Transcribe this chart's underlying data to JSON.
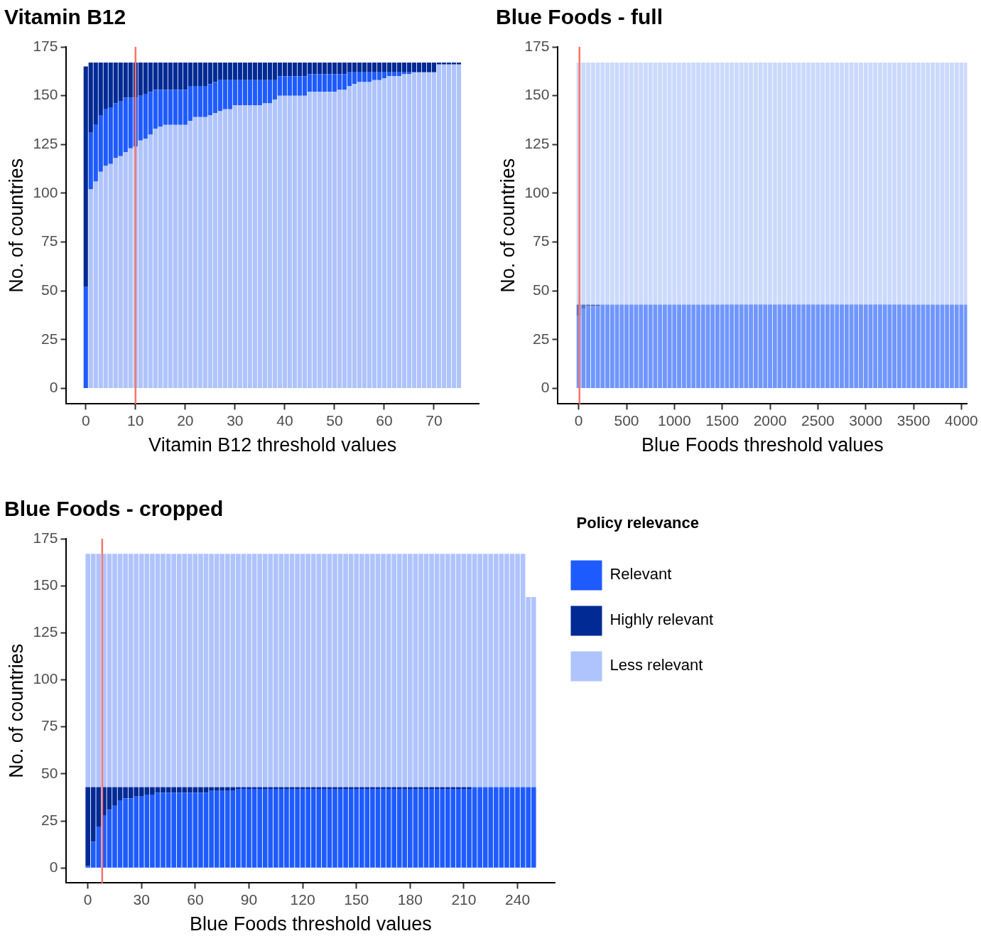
{
  "chart_data": [
    {
      "type": "bar",
      "title": "Vitamin B12",
      "xlabel": "Vitamin B12 threshold values",
      "ylabel": "No. of countries",
      "stacked": true,
      "grid": false,
      "legend": false,
      "x": [
        0,
        1,
        2,
        3,
        4,
        5,
        6,
        7,
        8,
        9,
        10,
        11,
        12,
        13,
        14,
        15,
        16,
        17,
        18,
        19,
        20,
        21,
        22,
        23,
        24,
        25,
        26,
        27,
        28,
        29,
        30,
        31,
        32,
        33,
        34,
        35,
        36,
        37,
        38,
        39,
        40,
        41,
        42,
        43,
        44,
        45,
        46,
        47,
        48,
        49,
        50,
        51,
        52,
        53,
        54,
        55,
        56,
        57,
        58,
        59,
        60,
        61,
        62,
        63,
        64,
        65,
        66,
        67,
        68,
        69,
        70,
        71,
        72,
        73,
        74,
        75
      ],
      "xlim": [
        -3.9,
        79
      ],
      "xticks": [
        0,
        10,
        20,
        30,
        40,
        50,
        60,
        70
      ],
      "ylim": [
        -8,
        175
      ],
      "yticks": [
        0,
        25,
        50,
        75,
        100,
        125,
        150,
        175
      ],
      "ref_lines": [
        {
          "axis": "x",
          "value": 10,
          "color": "#f8766d"
        }
      ],
      "series": [
        {
          "color": "#afc3fc",
          "values": [
            0,
            102,
            106,
            111,
            114,
            115,
            118,
            119,
            121,
            123,
            124,
            127,
            128,
            130,
            133,
            134,
            135,
            135,
            135,
            135,
            135,
            137,
            139,
            139,
            139,
            140,
            141,
            142,
            143,
            143,
            145,
            145,
            145,
            145,
            145,
            145,
            146,
            146,
            148,
            150,
            150,
            150,
            150,
            150,
            150,
            152,
            152,
            152,
            152,
            152,
            152,
            153,
            153,
            155,
            156,
            157,
            157,
            157,
            158,
            158,
            159,
            160,
            160,
            160,
            161,
            161,
            162,
            162,
            162,
            162,
            162,
            166,
            166,
            166,
            166,
            166
          ]
        },
        {
          "color": "#1e5bff",
          "values": [
            52,
            29,
            29,
            29,
            29,
            29,
            28,
            28,
            28,
            26,
            25,
            23,
            23,
            22,
            20,
            19,
            18,
            18,
            18,
            18,
            18,
            18,
            16,
            16,
            16,
            16,
            16,
            16,
            15,
            15,
            13,
            13,
            13,
            13,
            13,
            13,
            12,
            12,
            10,
            10,
            10,
            10,
            10,
            10,
            10,
            9,
            9,
            9,
            9,
            9,
            9,
            8,
            8,
            7,
            6,
            5,
            5,
            5,
            4,
            4,
            3,
            2,
            2,
            2,
            1,
            1,
            0,
            0,
            0,
            0,
            0,
            0,
            0,
            0,
            0,
            0
          ]
        },
        {
          "color": "#012a94",
          "values": [
            113,
            36,
            32,
            27,
            24,
            23,
            21,
            20,
            18,
            18,
            18,
            17,
            16,
            15,
            14,
            14,
            14,
            14,
            14,
            14,
            14,
            12,
            12,
            12,
            12,
            11,
            10,
            9,
            9,
            9,
            9,
            9,
            9,
            9,
            9,
            9,
            9,
            9,
            9,
            7,
            7,
            7,
            7,
            7,
            7,
            6,
            6,
            6,
            6,
            6,
            6,
            6,
            6,
            5,
            5,
            5,
            5,
            5,
            5,
            5,
            5,
            5,
            5,
            5,
            5,
            5,
            5,
            5,
            5,
            5,
            5,
            1,
            1,
            1,
            1,
            1
          ]
        }
      ]
    },
    {
      "type": "bar",
      "title": "Blue Foods - full",
      "xlabel": "Blue Foods threshold values",
      "ylabel": "No. of countries",
      "stacked": true,
      "grid": false,
      "legend": false,
      "x": [
        0,
        50,
        100,
        150,
        200,
        250,
        300,
        350,
        400,
        450,
        500,
        550,
        600,
        650,
        700,
        750,
        800,
        850,
        900,
        950,
        1000,
        1050,
        1100,
        1150,
        1200,
        1250,
        1300,
        1350,
        1400,
        1450,
        1500,
        1550,
        1600,
        1650,
        1700,
        1750,
        1800,
        1850,
        1900,
        1950,
        2000,
        2050,
        2100,
        2150,
        2200,
        2250,
        2300,
        2350,
        2400,
        2450,
        2500,
        2550,
        2600,
        2650,
        2700,
        2750,
        2800,
        2850,
        2900,
        2950,
        3000,
        3050,
        3100,
        3150,
        3200,
        3250,
        3300,
        3350,
        3400,
        3450,
        3500,
        3550,
        3600,
        3650,
        3700,
        3750,
        3800,
        3850,
        3900,
        3950,
        4000,
        4050
      ],
      "xlim": [
        -217,
        4060
      ],
      "xticks": [
        0,
        500,
        1000,
        1500,
        2000,
        2500,
        3000,
        3500,
        4000
      ],
      "ylim": [
        -8,
        175
      ],
      "yticks": [
        0,
        25,
        50,
        75,
        100,
        125,
        150,
        175
      ],
      "ref_lines": [
        {
          "axis": "x",
          "value": 8,
          "color": "#f8766d"
        }
      ],
      "series": [
        {
          "color": "#7096fe",
          "values": [
            37,
            41,
            42,
            42,
            42,
            43,
            43,
            43,
            43,
            43,
            43,
            43,
            43,
            43,
            43,
            43,
            43,
            43,
            43,
            43,
            43,
            43,
            43,
            43,
            43,
            43,
            43,
            43,
            43,
            43,
            43,
            43,
            43,
            43,
            43,
            43,
            43,
            43,
            43,
            43,
            43,
            43,
            43,
            43,
            43,
            43,
            43,
            43,
            43,
            43,
            43,
            43,
            43,
            43,
            43,
            43,
            43,
            43,
            43,
            43,
            43,
            43,
            43,
            43,
            43,
            43,
            43,
            43,
            43,
            43,
            43,
            43,
            43,
            43,
            43,
            43,
            43,
            43,
            43,
            43,
            43,
            43
          ]
        },
        {
          "color": "#5a78c9",
          "values": [
            6,
            2,
            1,
            1,
            1,
            0,
            0,
            0,
            0,
            0,
            0,
            0,
            0,
            0,
            0,
            0,
            0,
            0,
            0,
            0,
            0,
            0,
            0,
            0,
            0,
            0,
            0,
            0,
            0,
            0,
            0,
            0,
            0,
            0,
            0,
            0,
            0,
            0,
            0,
            0,
            0,
            0,
            0,
            0,
            0,
            0,
            0,
            0,
            0,
            0,
            0,
            0,
            0,
            0,
            0,
            0,
            0,
            0,
            0,
            0,
            0,
            0,
            0,
            0,
            0,
            0,
            0,
            0,
            0,
            0,
            0,
            0,
            0,
            0,
            0,
            0,
            0,
            0,
            0,
            0,
            0,
            0
          ]
        },
        {
          "color": "#cbd9fd",
          "values": [
            124,
            124,
            124,
            124,
            124,
            124,
            124,
            124,
            124,
            124,
            124,
            124,
            124,
            124,
            124,
            124,
            124,
            124,
            124,
            124,
            124,
            124,
            124,
            124,
            124,
            124,
            124,
            124,
            124,
            124,
            124,
            124,
            124,
            124,
            124,
            124,
            124,
            124,
            124,
            124,
            124,
            124,
            124,
            124,
            124,
            124,
            124,
            124,
            124,
            124,
            124,
            124,
            124,
            124,
            124,
            124,
            124,
            124,
            124,
            124,
            124,
            124,
            124,
            124,
            124,
            124,
            124,
            124,
            124,
            124,
            124,
            124,
            124,
            124,
            124,
            124,
            124,
            124,
            124,
            124,
            124,
            124
          ]
        }
      ]
    },
    {
      "type": "bar",
      "title": "Blue Foods - cropped",
      "xlabel": "Blue Foods threshold values",
      "ylabel": "No. of countries",
      "stacked": true,
      "grid": false,
      "legend": "right",
      "legend_title": "Policy relevance",
      "x": [
        0,
        3,
        6,
        9,
        12,
        15,
        18,
        21,
        24,
        27,
        30,
        33,
        36,
        39,
        42,
        45,
        48,
        51,
        54,
        57,
        60,
        63,
        66,
        69,
        72,
        75,
        78,
        81,
        84,
        87,
        90,
        93,
        96,
        99,
        102,
        105,
        108,
        111,
        114,
        117,
        120,
        123,
        126,
        129,
        132,
        135,
        138,
        141,
        144,
        147,
        150,
        153,
        156,
        159,
        162,
        165,
        168,
        171,
        174,
        177,
        180,
        183,
        186,
        189,
        192,
        195,
        198,
        201,
        204,
        207,
        210,
        213,
        216,
        219,
        222,
        225,
        228,
        231,
        234,
        237,
        240,
        243,
        246,
        249
      ],
      "xlim": [
        -12,
        261
      ],
      "xticks": [
        0,
        30,
        60,
        90,
        120,
        150,
        180,
        210,
        240
      ],
      "ylim": [
        -8,
        175
      ],
      "yticks": [
        0,
        25,
        50,
        75,
        100,
        125,
        150,
        175
      ],
      "ref_lines": [
        {
          "axis": "x",
          "value": 8,
          "color": "#f8766d"
        }
      ],
      "series": [
        {
          "name": "Relevant",
          "color": "#1e5bff",
          "values": [
            1,
            14,
            22,
            28,
            31,
            33,
            36,
            37,
            37,
            38,
            38,
            39,
            39,
            40,
            40,
            40,
            40,
            40,
            40,
            40,
            40,
            40,
            40,
            41,
            41,
            41,
            41,
            41,
            42,
            42,
            42,
            42,
            42,
            42,
            42,
            42,
            42,
            42,
            42,
            42,
            42,
            42,
            42,
            42,
            42,
            42,
            42,
            42,
            42,
            42,
            42,
            42,
            42,
            42,
            42,
            42,
            42,
            42,
            42,
            42,
            42,
            42,
            42,
            42,
            42,
            42,
            42,
            42,
            42,
            42,
            42,
            42,
            43,
            43,
            43,
            43,
            43,
            43,
            43,
            43,
            43,
            43,
            43,
            43
          ]
        },
        {
          "name": "Highly relevant",
          "color": "#012a94",
          "values": [
            42,
            29,
            21,
            15,
            12,
            10,
            7,
            6,
            6,
            5,
            5,
            4,
            4,
            3,
            3,
            3,
            3,
            3,
            3,
            3,
            3,
            3,
            3,
            2,
            2,
            2,
            2,
            2,
            1,
            1,
            1,
            1,
            1,
            1,
            1,
            1,
            1,
            1,
            1,
            1,
            1,
            1,
            1,
            1,
            1,
            1,
            1,
            1,
            1,
            1,
            1,
            1,
            1,
            1,
            1,
            1,
            1,
            1,
            1,
            1,
            1,
            1,
            1,
            1,
            1,
            1,
            1,
            1,
            1,
            1,
            1,
            1,
            0,
            0,
            0,
            0,
            0,
            0,
            0,
            0,
            0,
            0,
            0,
            0
          ]
        },
        {
          "name": "Less relevant",
          "color": "#afc3fc",
          "values": [
            124,
            124,
            124,
            124,
            124,
            124,
            124,
            124,
            124,
            124,
            124,
            124,
            124,
            124,
            124,
            124,
            124,
            124,
            124,
            124,
            124,
            124,
            124,
            124,
            124,
            124,
            124,
            124,
            124,
            124,
            124,
            124,
            124,
            124,
            124,
            124,
            124,
            124,
            124,
            124,
            124,
            124,
            124,
            124,
            124,
            124,
            124,
            124,
            124,
            124,
            124,
            124,
            124,
            124,
            124,
            124,
            124,
            124,
            124,
            124,
            124,
            124,
            124,
            124,
            124,
            124,
            124,
            124,
            124,
            124,
            124,
            124,
            124,
            124,
            124,
            124,
            124,
            124,
            124,
            124,
            124,
            124,
            101,
            101
          ]
        }
      ]
    }
  ]
}
